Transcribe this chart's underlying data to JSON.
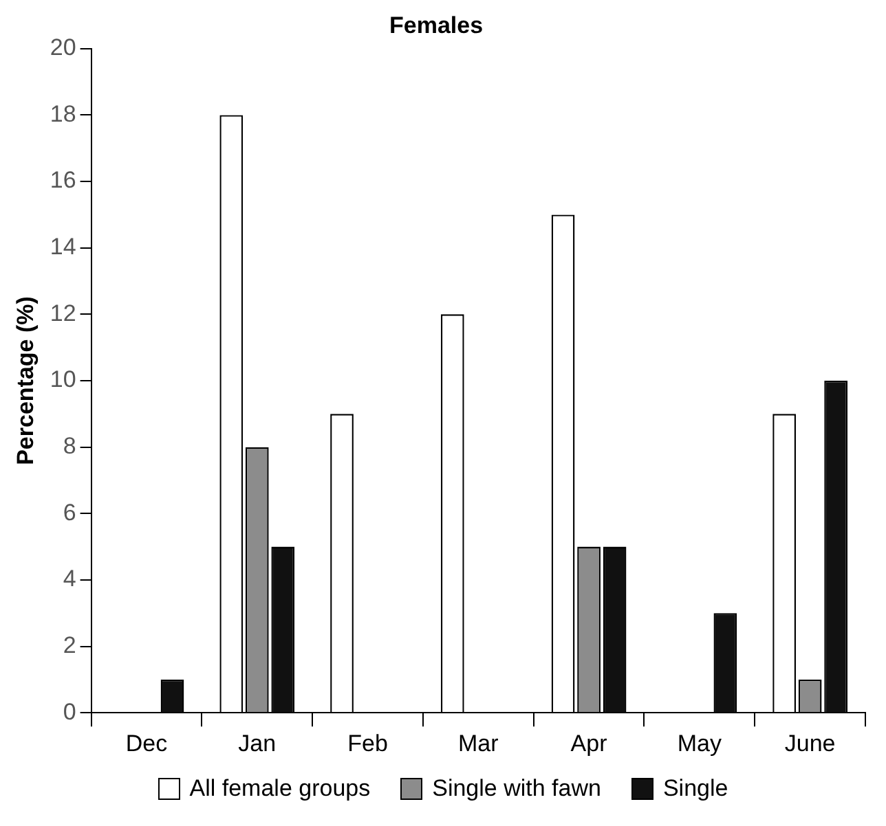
{
  "chart_data": {
    "type": "bar",
    "title": "Females",
    "ylabel": "Percentage (%)",
    "categories": [
      "Dec",
      "Jan",
      "Feb",
      "Mar",
      "Apr",
      "May",
      "June"
    ],
    "series": [
      {
        "name": "All female groups",
        "color": "#ffffff",
        "values": [
          0,
          18,
          9,
          12,
          15,
          0,
          9
        ]
      },
      {
        "name": "Single with fawn",
        "color": "#8c8c8c",
        "values": [
          0,
          8,
          0,
          0,
          5,
          0,
          1
        ]
      },
      {
        "name": "Single",
        "color": "#111111",
        "values": [
          1,
          5,
          0,
          0,
          5,
          3,
          10
        ]
      }
    ],
    "ylim": [
      0,
      20
    ],
    "yticks": [
      0,
      2,
      4,
      6,
      8,
      10,
      12,
      14,
      16,
      18,
      20
    ],
    "grid": false,
    "legend": "bottom"
  }
}
